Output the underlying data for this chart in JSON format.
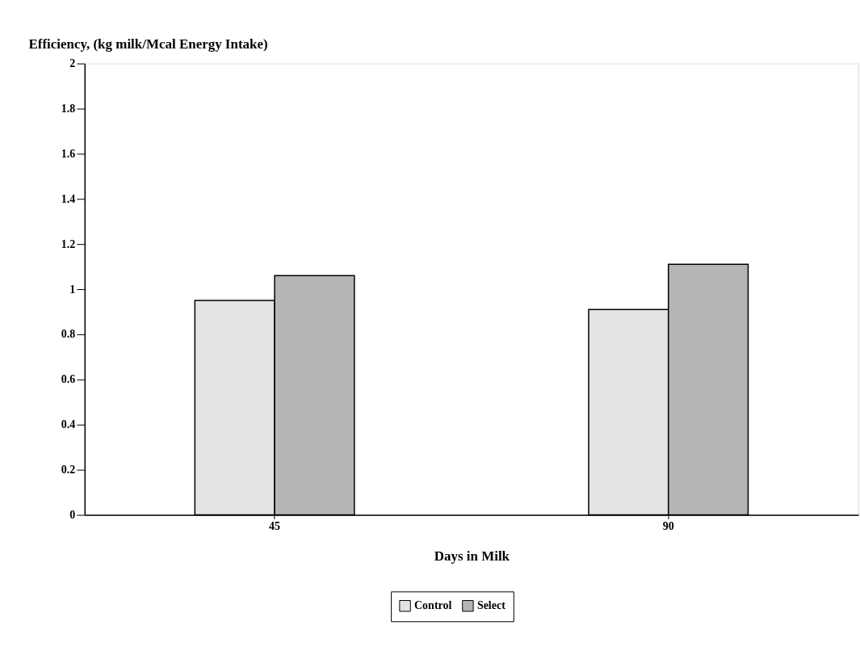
{
  "chart_data": {
    "type": "bar",
    "ylabel": "Efficiency, (kg milk/Mcal Energy Intake)",
    "xlabel": "Days in Milk",
    "categories": [
      "45",
      "90"
    ],
    "series": [
      {
        "name": "Control",
        "color": "#e3e3e3",
        "values": [
          0.95,
          0.91
        ]
      },
      {
        "name": "Select",
        "color": "#b5b5b5",
        "values": [
          1.06,
          1.11
        ]
      }
    ],
    "ylim": [
      0,
      2
    ],
    "yticks": [
      0,
      0.2,
      0.4,
      0.6,
      0.8,
      1,
      1.2,
      1.4,
      1.6,
      1.8,
      2
    ],
    "grid": false,
    "legend": "bottom"
  }
}
